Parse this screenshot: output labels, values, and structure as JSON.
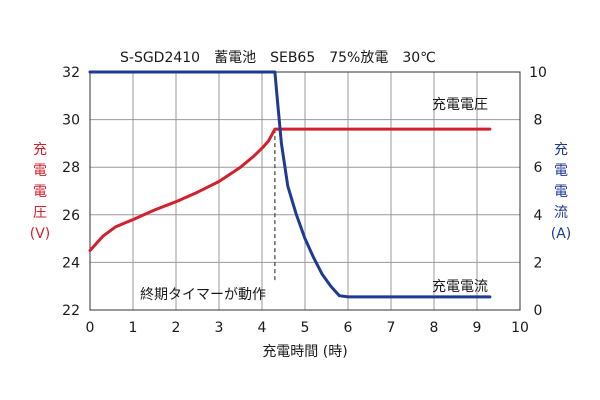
{
  "chart_data": {
    "type": "line",
    "title": "S-SGD2410　蓄電池　SEB65　75%放電　30℃",
    "xlabel": "充電時間 (時)",
    "ylabel_left": [
      "充",
      "電",
      "電",
      "圧",
      "(V)"
    ],
    "ylabel_right": [
      "充",
      "電",
      "電",
      "流",
      "(A)"
    ],
    "xlim": [
      0,
      10
    ],
    "ylim_left": [
      22,
      32
    ],
    "ylim_right": [
      0,
      10
    ],
    "x_ticks": [
      "0",
      "1",
      "2",
      "3",
      "4",
      "5",
      "6",
      "7",
      "8",
      "9",
      "10"
    ],
    "y_left_ticks": [
      "22",
      "24",
      "26",
      "28",
      "30",
      "32"
    ],
    "y_right_ticks": [
      "0",
      "2",
      "4",
      "6",
      "8",
      "10"
    ],
    "grid": true,
    "colors": {
      "voltage": "#d4202c",
      "current": "#1f3a93",
      "left_axis_label": "#d4202c",
      "right_axis_label": "#1f3a93"
    },
    "series": [
      {
        "name": "充電電圧",
        "axis": "left",
        "points": [
          [
            0,
            24.5
          ],
          [
            0.3,
            25.1
          ],
          [
            0.6,
            25.5
          ],
          [
            1.0,
            25.8
          ],
          [
            1.5,
            26.2
          ],
          [
            2.0,
            26.55
          ],
          [
            2.5,
            26.95
          ],
          [
            3.0,
            27.4
          ],
          [
            3.5,
            28.0
          ],
          [
            3.8,
            28.45
          ],
          [
            4.0,
            28.8
          ],
          [
            4.15,
            29.1
          ],
          [
            4.3,
            29.6
          ],
          [
            5.0,
            29.6
          ],
          [
            6.0,
            29.6
          ],
          [
            7.0,
            29.6
          ],
          [
            8.0,
            29.6
          ],
          [
            9.3,
            29.6
          ]
        ]
      },
      {
        "name": "充電電流",
        "axis": "right",
        "points": [
          [
            0,
            10
          ],
          [
            4.3,
            10
          ],
          [
            4.35,
            9.0
          ],
          [
            4.45,
            7.0
          ],
          [
            4.6,
            5.2
          ],
          [
            4.8,
            4.0
          ],
          [
            5.0,
            3.0
          ],
          [
            5.2,
            2.2
          ],
          [
            5.4,
            1.5
          ],
          [
            5.6,
            1.0
          ],
          [
            5.8,
            0.6
          ],
          [
            6.0,
            0.55
          ],
          [
            7.0,
            0.55
          ],
          [
            8.0,
            0.55
          ],
          [
            9.3,
            0.55
          ]
        ]
      }
    ],
    "annotations": [
      {
        "text": "終期タイマーが動作",
        "x": 4.3
      }
    ]
  }
}
